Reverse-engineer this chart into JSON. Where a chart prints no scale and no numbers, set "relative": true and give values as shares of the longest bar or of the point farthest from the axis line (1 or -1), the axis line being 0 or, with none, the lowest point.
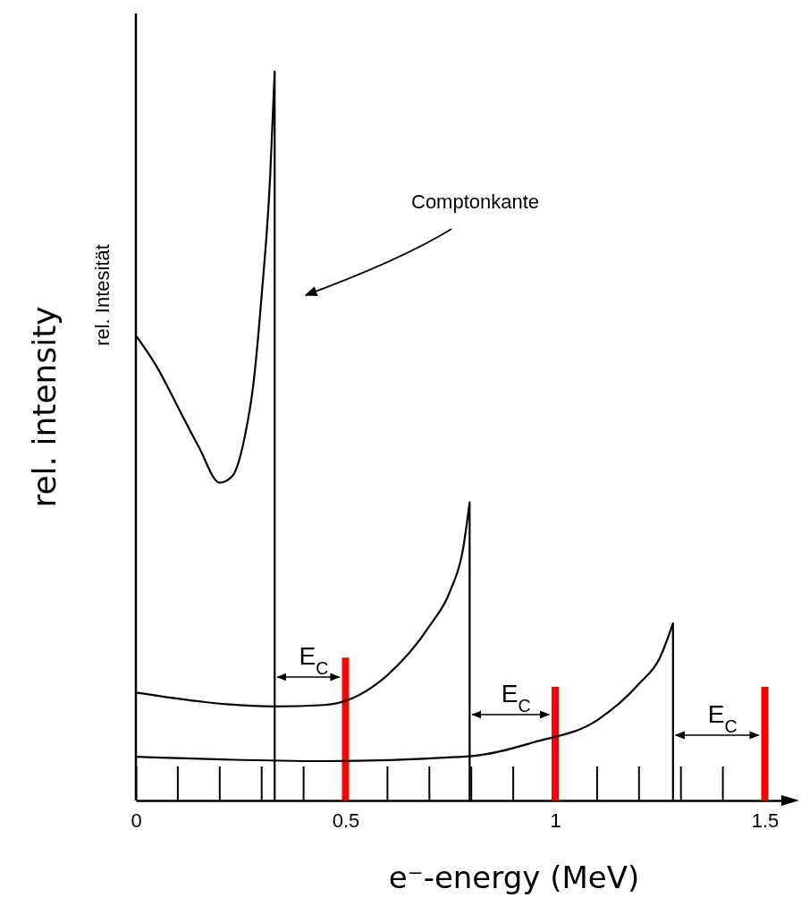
{
  "chart_data": {
    "type": "line",
    "ylabel": "rel. intensity",
    "xlabel": "e⁻-energy (MeV)",
    "relative": true,
    "xlim": [
      0,
      1.565
    ],
    "xticks": [
      0,
      0.5,
      1,
      1.5
    ],
    "series": [
      {
        "color": "#000000",
        "x": [
          0,
          0.05,
          0.1,
          0.15,
          0.2,
          0.23,
          0.26,
          0.28,
          0.3,
          0.32,
          0.331,
          0.331
        ],
        "values": [
          0.638,
          0.595,
          0.54,
          0.485,
          0.436,
          0.445,
          0.5,
          0.57,
          0.693,
          0.853,
          1.0,
          0
        ]
      },
      {
        "color": "#000000",
        "x": [
          0,
          0.33,
          0.45,
          0.6,
          0.7,
          0.75,
          0.78,
          0.796,
          0.796
        ],
        "values": [
          0.148,
          0.129,
          0.131,
          0.172,
          0.239,
          0.288,
          0.344,
          0.409,
          0
        ]
      },
      {
        "color": "#000000",
        "x": [
          0,
          0.45,
          0.8,
          0.95,
          1.1,
          1.2,
          1.25,
          1.281,
          1.281
        ],
        "values": [
          0.06,
          0.054,
          0.061,
          0.08,
          0.11,
          0.16,
          0.196,
          0.243,
          0
        ]
      },
      {
        "type": "bar",
        "color": "#ff0000",
        "x": [
          0.5,
          1,
          1.5
        ],
        "values": [
          0.196,
          0.156,
          0.156
        ]
      }
    ],
    "annotations": [
      "Comptonkante",
      "rel. Intesität",
      "E$_{C}$",
      "E$_{C}$",
      "E$_{C}$"
    ]
  }
}
